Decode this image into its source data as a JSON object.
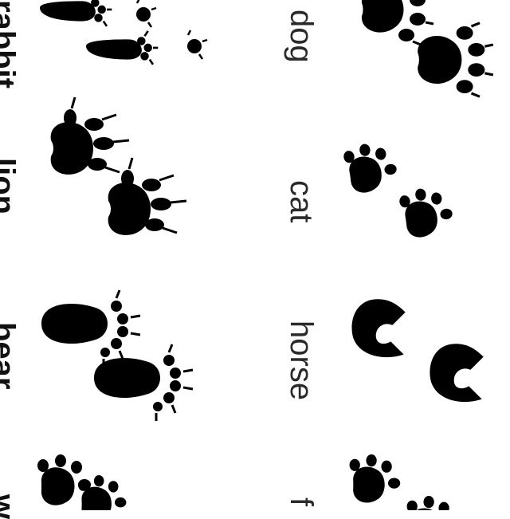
{
  "figure": {
    "ink_color": "#000000",
    "background": "#ffffff",
    "right_column_labels": [
      "dog",
      "cat",
      "horse",
      "f"
    ],
    "left_column_labels": [
      "rabbit",
      "lion",
      "bear",
      "w"
    ],
    "right_column_tracks": [
      "dog-paw-icon",
      "cat-paw-icon",
      "horse-hoof-icon",
      "paw-icon"
    ],
    "left_column_tracks": [
      "rabbit-foot-icon",
      "lion-paw-icon",
      "bear-paw-icon",
      "paw-icon"
    ]
  }
}
